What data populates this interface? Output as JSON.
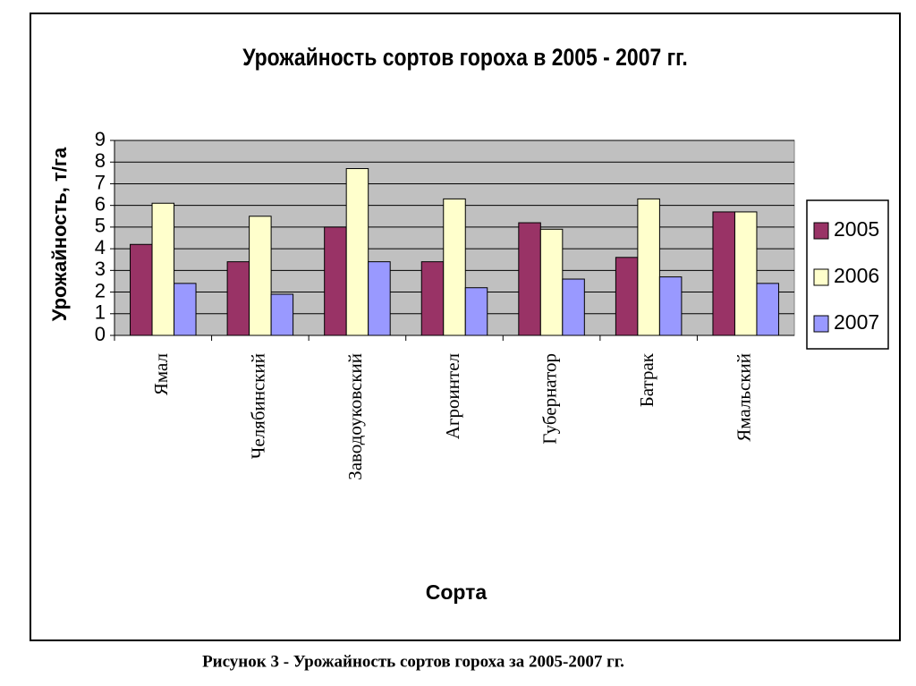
{
  "chart_data": {
    "type": "bar",
    "title": "Урожайность сортов гороха в 2005 - 2007 гг.",
    "x_label": "Сорта",
    "y_label": "Урожайность, т/га",
    "categories": [
      "Ямал",
      "Челябинский",
      "Заводоуковский",
      "Агроинтел",
      "Губернатор",
      "Батрак",
      "Ямальский"
    ],
    "series": [
      {
        "name": "2005",
        "color": "#993366",
        "values": [
          4.2,
          3.4,
          5.0,
          3.4,
          5.2,
          3.6,
          5.7
        ]
      },
      {
        "name": "2006",
        "color": "#ffffcc",
        "values": [
          6.1,
          5.5,
          7.7,
          6.3,
          4.9,
          6.3,
          5.7
        ]
      },
      {
        "name": "2007",
        "color": "#9999ff",
        "values": [
          2.4,
          1.9,
          3.4,
          2.2,
          2.6,
          2.7,
          2.4
        ]
      }
    ],
    "ylim": [
      0,
      9
    ],
    "yticks": [
      0,
      1,
      2,
      3,
      4,
      5,
      6,
      7,
      8,
      9
    ],
    "grid": true,
    "legend": "right",
    "caption": "Рисунок 3 - Урожайность сортов гороха за 2005-2007 гг."
  }
}
